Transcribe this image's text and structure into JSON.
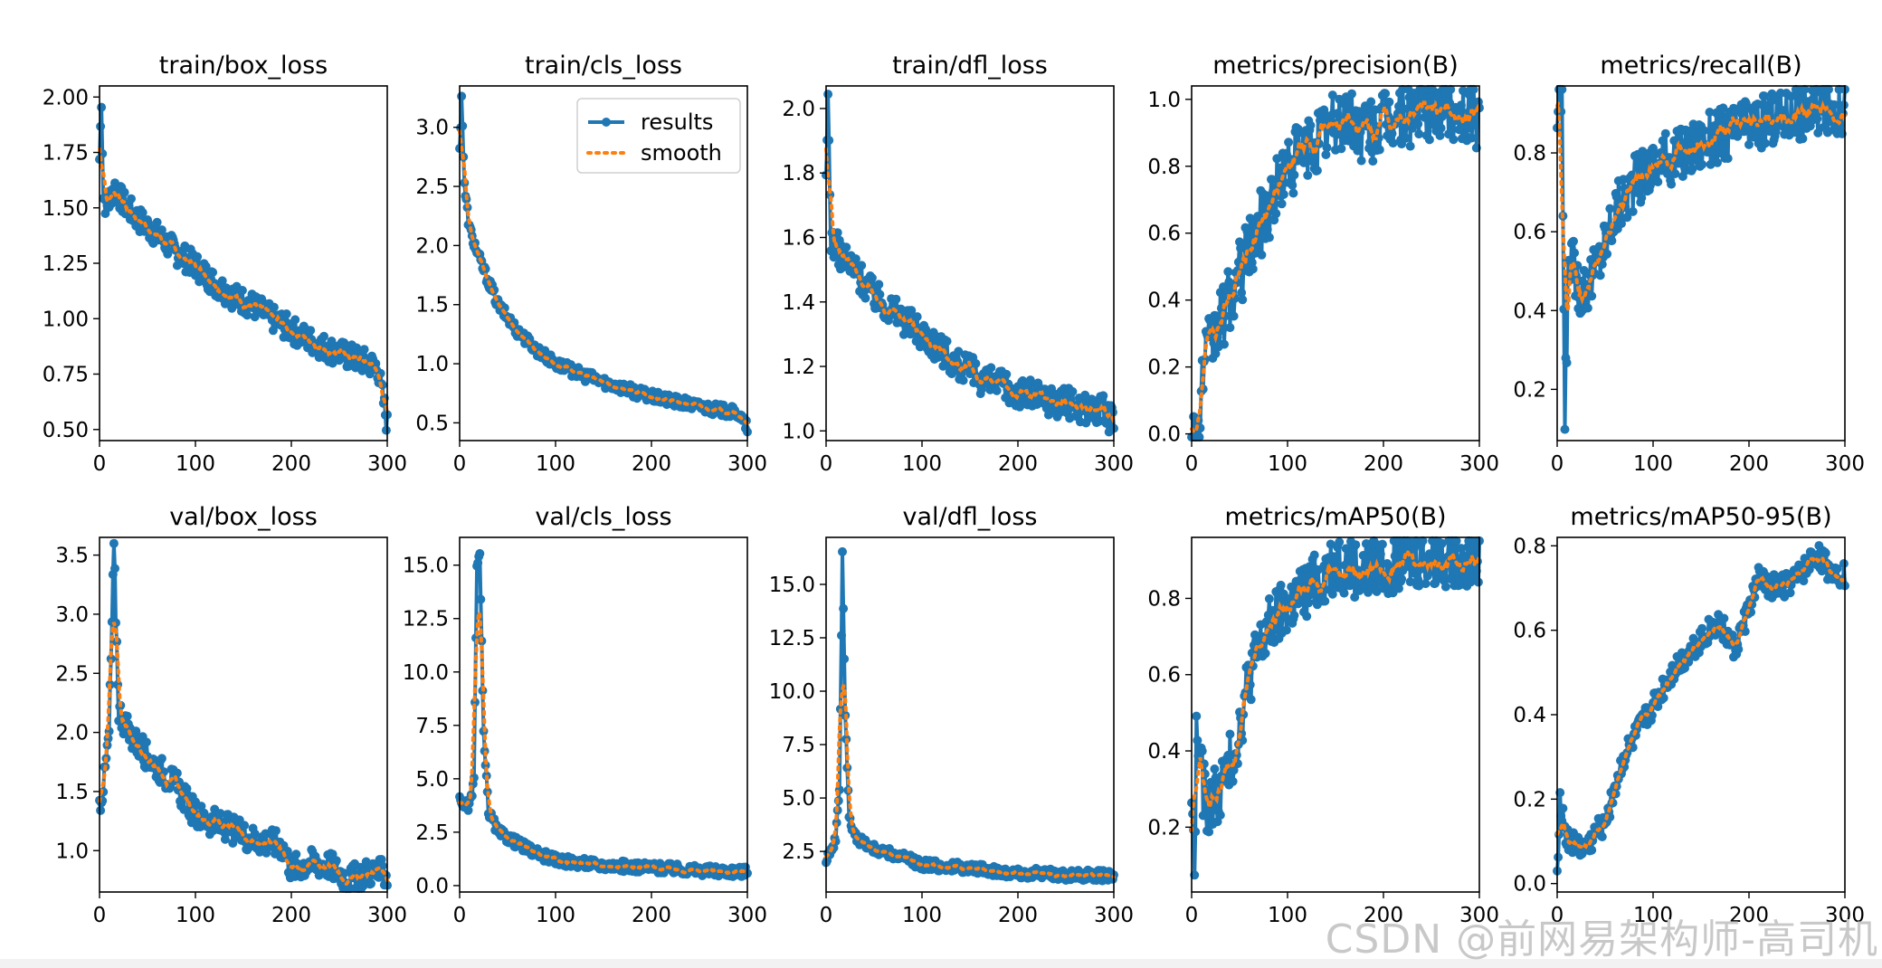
{
  "watermark": "CSDN @前网易架构师-高司机",
  "chart_data": [
    {
      "type": "line",
      "title": "train/box_loss",
      "xlim": [
        0,
        300
      ],
      "ylim": [
        0.45,
        2.05
      ],
      "xticks": [
        0,
        100,
        200,
        300
      ],
      "xtick_labels": [
        "0",
        "100",
        "200",
        "300"
      ],
      "yticks": [
        0.5,
        0.75,
        1.0,
        1.25,
        1.5,
        1.75,
        2.0
      ],
      "ytick_labels": [
        "0.50",
        "0.75",
        "1.00",
        "1.25",
        "1.50",
        "1.75",
        "2.00"
      ],
      "anchors": [
        [
          0,
          1.72
        ],
        [
          2,
          2.0
        ],
        [
          4,
          1.55
        ],
        [
          8,
          1.5
        ],
        [
          15,
          1.6
        ],
        [
          25,
          1.52
        ],
        [
          40,
          1.45
        ],
        [
          60,
          1.38
        ],
        [
          80,
          1.3
        ],
        [
          100,
          1.24
        ],
        [
          120,
          1.16
        ],
        [
          140,
          1.1
        ],
        [
          160,
          1.06
        ],
        [
          180,
          1.0
        ],
        [
          200,
          0.95
        ],
        [
          220,
          0.9
        ],
        [
          240,
          0.86
        ],
        [
          260,
          0.83
        ],
        [
          280,
          0.8
        ],
        [
          290,
          0.78
        ],
        [
          300,
          0.52
        ]
      ],
      "noise": 0.06,
      "series": [
        {
          "name": "results",
          "color": "#1f77b4"
        },
        {
          "name": "smooth",
          "color": "#ff7f0e"
        }
      ]
    },
    {
      "type": "line",
      "title": "train/cls_loss",
      "xlim": [
        0,
        300
      ],
      "ylim": [
        0.35,
        3.35
      ],
      "xticks": [
        0,
        100,
        200,
        300
      ],
      "xtick_labels": [
        "0",
        "100",
        "200",
        "300"
      ],
      "yticks": [
        0.5,
        1.0,
        1.5,
        2.0,
        2.5,
        3.0
      ],
      "ytick_labels": [
        "0.5",
        "1.0",
        "1.5",
        "2.0",
        "2.5",
        "3.0"
      ],
      "anchors": [
        [
          0,
          2.8
        ],
        [
          2,
          3.28
        ],
        [
          5,
          2.5
        ],
        [
          10,
          2.15
        ],
        [
          20,
          1.9
        ],
        [
          40,
          1.5
        ],
        [
          60,
          1.28
        ],
        [
          80,
          1.12
        ],
        [
          100,
          1.0
        ],
        [
          130,
          0.9
        ],
        [
          160,
          0.82
        ],
        [
          200,
          0.72
        ],
        [
          250,
          0.64
        ],
        [
          290,
          0.58
        ],
        [
          300,
          0.46
        ]
      ],
      "noise": 0.05,
      "legend": {
        "position": "top-right",
        "entries": [
          "results",
          "smooth"
        ]
      },
      "series": [
        {
          "name": "results",
          "color": "#1f77b4"
        },
        {
          "name": "smooth",
          "color": "#ff7f0e"
        }
      ]
    },
    {
      "type": "line",
      "title": "train/dfl_loss",
      "xlim": [
        0,
        300
      ],
      "ylim": [
        0.97,
        2.07
      ],
      "xticks": [
        0,
        100,
        200,
        300
      ],
      "xtick_labels": [
        "0",
        "100",
        "200",
        "300"
      ],
      "yticks": [
        1.0,
        1.2,
        1.4,
        1.6,
        1.8,
        2.0
      ],
      "ytick_labels": [
        "1.0",
        "1.2",
        "1.4",
        "1.6",
        "1.8",
        "2.0"
      ],
      "anchors": [
        [
          0,
          1.75
        ],
        [
          2,
          2.04
        ],
        [
          5,
          1.6
        ],
        [
          15,
          1.55
        ],
        [
          30,
          1.5
        ],
        [
          50,
          1.42
        ],
        [
          80,
          1.35
        ],
        [
          110,
          1.28
        ],
        [
          140,
          1.2
        ],
        [
          170,
          1.15
        ],
        [
          200,
          1.12
        ],
        [
          230,
          1.1
        ],
        [
          260,
          1.08
        ],
        [
          290,
          1.06
        ],
        [
          300,
          1.02
        ]
      ],
      "noise": 0.05,
      "series": [
        {
          "name": "results",
          "color": "#1f77b4"
        },
        {
          "name": "smooth",
          "color": "#ff7f0e"
        }
      ]
    },
    {
      "type": "line",
      "title": "metrics/precision(B)",
      "xlim": [
        0,
        300
      ],
      "ylim": [
        -0.02,
        1.04
      ],
      "xticks": [
        0,
        100,
        200,
        300
      ],
      "xtick_labels": [
        "0",
        "100",
        "200",
        "300"
      ],
      "yticks": [
        0.0,
        0.2,
        0.4,
        0.6,
        0.8,
        1.0
      ],
      "ytick_labels": [
        "0.0",
        "0.2",
        "0.4",
        "0.6",
        "0.8",
        "1.0"
      ],
      "anchors": [
        [
          0,
          0.0
        ],
        [
          8,
          0.0
        ],
        [
          12,
          0.2
        ],
        [
          25,
          0.3
        ],
        [
          40,
          0.4
        ],
        [
          60,
          0.55
        ],
        [
          80,
          0.68
        ],
        [
          100,
          0.8
        ],
        [
          120,
          0.85
        ],
        [
          140,
          0.9
        ],
        [
          160,
          0.95
        ],
        [
          180,
          0.9
        ],
        [
          200,
          0.93
        ],
        [
          230,
          0.96
        ],
        [
          260,
          0.98
        ],
        [
          300,
          0.95
        ]
      ],
      "noise": 0.1,
      "series": [
        {
          "name": "results",
          "color": "#1f77b4"
        },
        {
          "name": "smooth",
          "color": "#ff7f0e"
        }
      ]
    },
    {
      "type": "line",
      "title": "metrics/recall(B)",
      "xlim": [
        0,
        300
      ],
      "ylim": [
        0.07,
        0.97
      ],
      "xticks": [
        0,
        100,
        200,
        300
      ],
      "xtick_labels": [
        "0",
        "100",
        "200",
        "300"
      ],
      "yticks": [
        0.2,
        0.4,
        0.6,
        0.8
      ],
      "ytick_labels": [
        "0.2",
        "0.4",
        "0.6",
        "0.8"
      ],
      "anchors": [
        [
          0,
          0.88
        ],
        [
          5,
          0.95
        ],
        [
          8,
          0.1
        ],
        [
          12,
          0.55
        ],
        [
          25,
          0.45
        ],
        [
          40,
          0.5
        ],
        [
          60,
          0.65
        ],
        [
          80,
          0.72
        ],
        [
          100,
          0.77
        ],
        [
          130,
          0.8
        ],
        [
          160,
          0.84
        ],
        [
          200,
          0.87
        ],
        [
          240,
          0.9
        ],
        [
          270,
          0.91
        ],
        [
          300,
          0.91
        ]
      ],
      "noise": 0.07,
      "series": [
        {
          "name": "results",
          "color": "#1f77b4"
        },
        {
          "name": "smooth",
          "color": "#ff7f0e"
        }
      ]
    },
    {
      "type": "line",
      "title": "val/box_loss",
      "xlim": [
        0,
        300
      ],
      "ylim": [
        0.65,
        3.65
      ],
      "xticks": [
        0,
        100,
        200,
        300
      ],
      "xtick_labels": [
        "0",
        "100",
        "200",
        "300"
      ],
      "yticks": [
        1.0,
        1.5,
        2.0,
        2.5,
        3.0,
        3.5
      ],
      "ytick_labels": [
        "1.0",
        "1.5",
        "2.0",
        "2.5",
        "3.0",
        "3.5"
      ],
      "anchors": [
        [
          0,
          1.4
        ],
        [
          5,
          1.6
        ],
        [
          10,
          2.0
        ],
        [
          15,
          3.55
        ],
        [
          20,
          2.2
        ],
        [
          30,
          2.0
        ],
        [
          50,
          1.8
        ],
        [
          80,
          1.55
        ],
        [
          100,
          1.3
        ],
        [
          130,
          1.2
        ],
        [
          160,
          1.1
        ],
        [
          190,
          1.05
        ],
        [
          200,
          0.85
        ],
        [
          220,
          0.9
        ],
        [
          240,
          0.88
        ],
        [
          260,
          0.75
        ],
        [
          280,
          0.82
        ],
        [
          300,
          0.8
        ]
      ],
      "noise": 0.12,
      "series": [
        {
          "name": "results",
          "color": "#1f77b4"
        },
        {
          "name": "smooth",
          "color": "#ff7f0e"
        }
      ]
    },
    {
      "type": "line",
      "title": "val/cls_loss",
      "xlim": [
        0,
        300
      ],
      "ylim": [
        -0.3,
        16.3
      ],
      "xticks": [
        0,
        100,
        200,
        300
      ],
      "xtick_labels": [
        "0",
        "100",
        "200",
        "300"
      ],
      "yticks": [
        0.0,
        2.5,
        5.0,
        7.5,
        10.0,
        12.5,
        15.0
      ],
      "ytick_labels": [
        "0.0",
        "2.5",
        "5.0",
        "7.5",
        "10.0",
        "12.5",
        "15.0"
      ],
      "anchors": [
        [
          0,
          4.0
        ],
        [
          10,
          3.6
        ],
        [
          15,
          5.0
        ],
        [
          18,
          15.0
        ],
        [
          21,
          15.5
        ],
        [
          25,
          7.0
        ],
        [
          30,
          3.5
        ],
        [
          40,
          2.5
        ],
        [
          60,
          2.0
        ],
        [
          80,
          1.5
        ],
        [
          100,
          1.2
        ],
        [
          150,
          0.95
        ],
        [
          200,
          0.85
        ],
        [
          250,
          0.7
        ],
        [
          300,
          0.65
        ]
      ],
      "noise": 0.25,
      "series": [
        {
          "name": "results",
          "color": "#1f77b4"
        },
        {
          "name": "smooth",
          "color": "#ff7f0e"
        }
      ]
    },
    {
      "type": "line",
      "title": "val/dfl_loss",
      "xlim": [
        0,
        300
      ],
      "ylim": [
        0.6,
        17.2
      ],
      "xticks": [
        0,
        100,
        200,
        300
      ],
      "xtick_labels": [
        "0",
        "100",
        "200",
        "300"
      ],
      "yticks": [
        2.5,
        5.0,
        7.5,
        10.0,
        12.5,
        15.0
      ],
      "ytick_labels": [
        "2.5",
        "5.0",
        "7.5",
        "10.0",
        "12.5",
        "15.0"
      ],
      "anchors": [
        [
          0,
          2.2
        ],
        [
          10,
          3.0
        ],
        [
          14,
          5.5
        ],
        [
          17,
          16.5
        ],
        [
          20,
          9.0
        ],
        [
          24,
          4.0
        ],
        [
          30,
          3.2
        ],
        [
          50,
          2.6
        ],
        [
          80,
          2.2
        ],
        [
          100,
          1.9
        ],
        [
          150,
          1.7
        ],
        [
          200,
          1.5
        ],
        [
          250,
          1.4
        ],
        [
          300,
          1.35
        ]
      ],
      "noise": 0.25,
      "series": [
        {
          "name": "results",
          "color": "#1f77b4"
        },
        {
          "name": "smooth",
          "color": "#ff7f0e"
        }
      ]
    },
    {
      "type": "line",
      "title": "metrics/mAP50(B)",
      "xlim": [
        0,
        300
      ],
      "ylim": [
        0.03,
        0.96
      ],
      "xticks": [
        0,
        100,
        200,
        300
      ],
      "xtick_labels": [
        "0",
        "100",
        "200",
        "300"
      ],
      "yticks": [
        0.2,
        0.4,
        0.6,
        0.8
      ],
      "ytick_labels": [
        "0.2",
        "0.4",
        "0.6",
        "0.8"
      ],
      "anchors": [
        [
          0,
          0.3
        ],
        [
          3,
          0.06
        ],
        [
          5,
          0.44
        ],
        [
          15,
          0.25
        ],
        [
          30,
          0.3
        ],
        [
          45,
          0.4
        ],
        [
          60,
          0.6
        ],
        [
          80,
          0.72
        ],
        [
          100,
          0.78
        ],
        [
          130,
          0.84
        ],
        [
          150,
          0.9
        ],
        [
          180,
          0.87
        ],
        [
          200,
          0.89
        ],
        [
          250,
          0.91
        ],
        [
          300,
          0.91
        ]
      ],
      "noise": 0.08,
      "series": [
        {
          "name": "results",
          "color": "#1f77b4"
        },
        {
          "name": "smooth",
          "color": "#ff7f0e"
        }
      ]
    },
    {
      "type": "line",
      "title": "metrics/mAP50-95(B)",
      "xlim": [
        0,
        300
      ],
      "ylim": [
        -0.02,
        0.82
      ],
      "xticks": [
        0,
        100,
        200,
        300
      ],
      "xtick_labels": [
        "0",
        "100",
        "200",
        "300"
      ],
      "yticks": [
        0.0,
        0.2,
        0.4,
        0.6,
        0.8
      ],
      "ytick_labels": [
        "0.0",
        "0.2",
        "0.4",
        "0.6",
        "0.8"
      ],
      "anchors": [
        [
          0,
          0.03
        ],
        [
          3,
          0.2
        ],
        [
          10,
          0.1
        ],
        [
          30,
          0.08
        ],
        [
          50,
          0.15
        ],
        [
          70,
          0.3
        ],
        [
          100,
          0.42
        ],
        [
          120,
          0.5
        ],
        [
          150,
          0.58
        ],
        [
          170,
          0.62
        ],
        [
          185,
          0.55
        ],
        [
          200,
          0.65
        ],
        [
          210,
          0.72
        ],
        [
          230,
          0.7
        ],
        [
          250,
          0.72
        ],
        [
          270,
          0.78
        ],
        [
          285,
          0.74
        ],
        [
          300,
          0.73
        ]
      ],
      "noise": 0.03,
      "series": [
        {
          "name": "results",
          "color": "#1f77b4"
        },
        {
          "name": "smooth",
          "color": "#ff7f0e"
        }
      ]
    }
  ]
}
